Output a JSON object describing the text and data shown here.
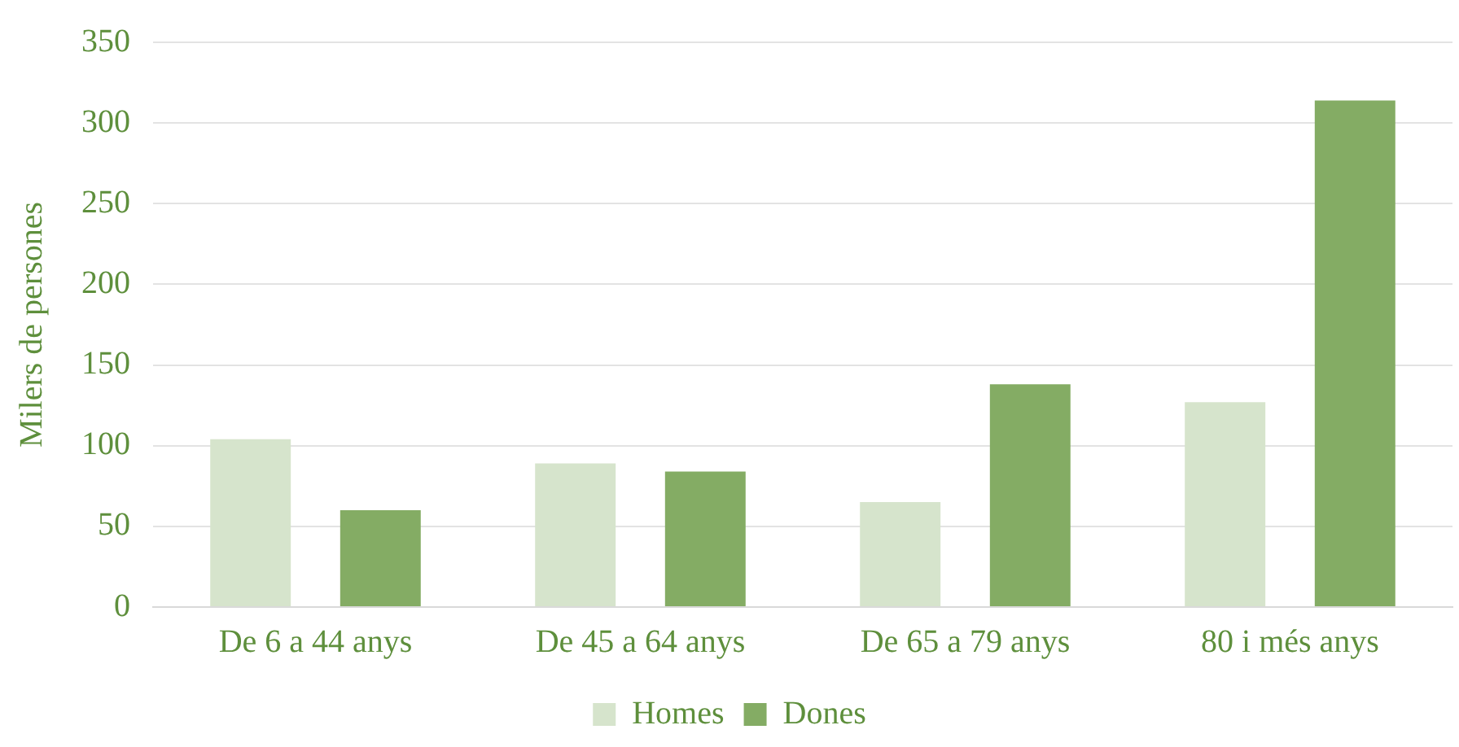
{
  "chart_data": {
    "type": "bar",
    "ylabel": "Milers de persones",
    "categories": [
      "De 6 a 44 anys",
      "De 45 a 64 anys",
      "De 65 a 79 anys",
      "80 i més anys"
    ],
    "series": [
      {
        "name": "Homes",
        "color": "#d6e4cc",
        "values": [
          104,
          89,
          65,
          127
        ]
      },
      {
        "name": "Dones",
        "color": "#84ac64",
        "values": [
          60,
          84,
          138,
          314
        ]
      }
    ],
    "ylim": [
      0,
      350
    ],
    "yticks": [
      0,
      50,
      100,
      150,
      200,
      250,
      300,
      350
    ],
    "grid": "y",
    "legend": "bottom"
  }
}
